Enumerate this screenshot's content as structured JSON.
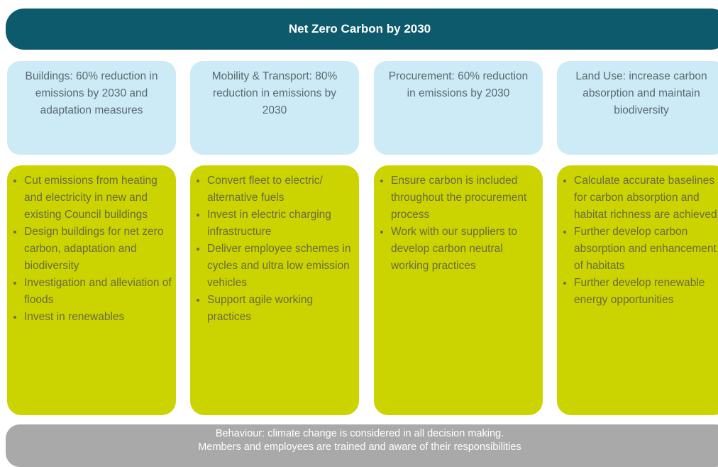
{
  "header": {
    "title": "Net Zero Carbon by 2030"
  },
  "columns": [
    {
      "heading": "Buildings: 60% reduction in emissions by 2030 and adaptation measures",
      "bullets": [
        "Cut emissions from heating and electricity in new and existing Council buildings",
        "Design buildings for net zero carbon, adaptation and biodiversity",
        "Investigation and alleviation of floods",
        "Invest in renewables"
      ]
    },
    {
      "heading": "Mobility & Transport: 80% reduction in emissions by 2030",
      "bullets": [
        "Convert fleet to electric/ alternative fuels",
        "Invest in electric charging infrastructure",
        "Deliver employee schemes in cycles and ultra low emission vehicles",
        "Support agile working practices"
      ]
    },
    {
      "heading": "Procurement: 60% reduction in emissions by 2030",
      "bullets": [
        "Ensure carbon is included throughout the procurement process",
        "Work with our suppliers to develop carbon neutral working practices"
      ]
    },
    {
      "heading": "Land Use: increase carbon absorption and maintain biodiversity",
      "bullets": [
        "Calculate accurate baselines for carbon absorption and habitat richness are achieved",
        "Further develop carbon absorption and enhancement of habitats",
        "Further develop renewable energy opportunities"
      ]
    }
  ],
  "footer": {
    "lines": [
      "Behaviour: climate change is considered in all decision making.",
      "Members and employees are trained and aware of their responsibilities"
    ]
  }
}
